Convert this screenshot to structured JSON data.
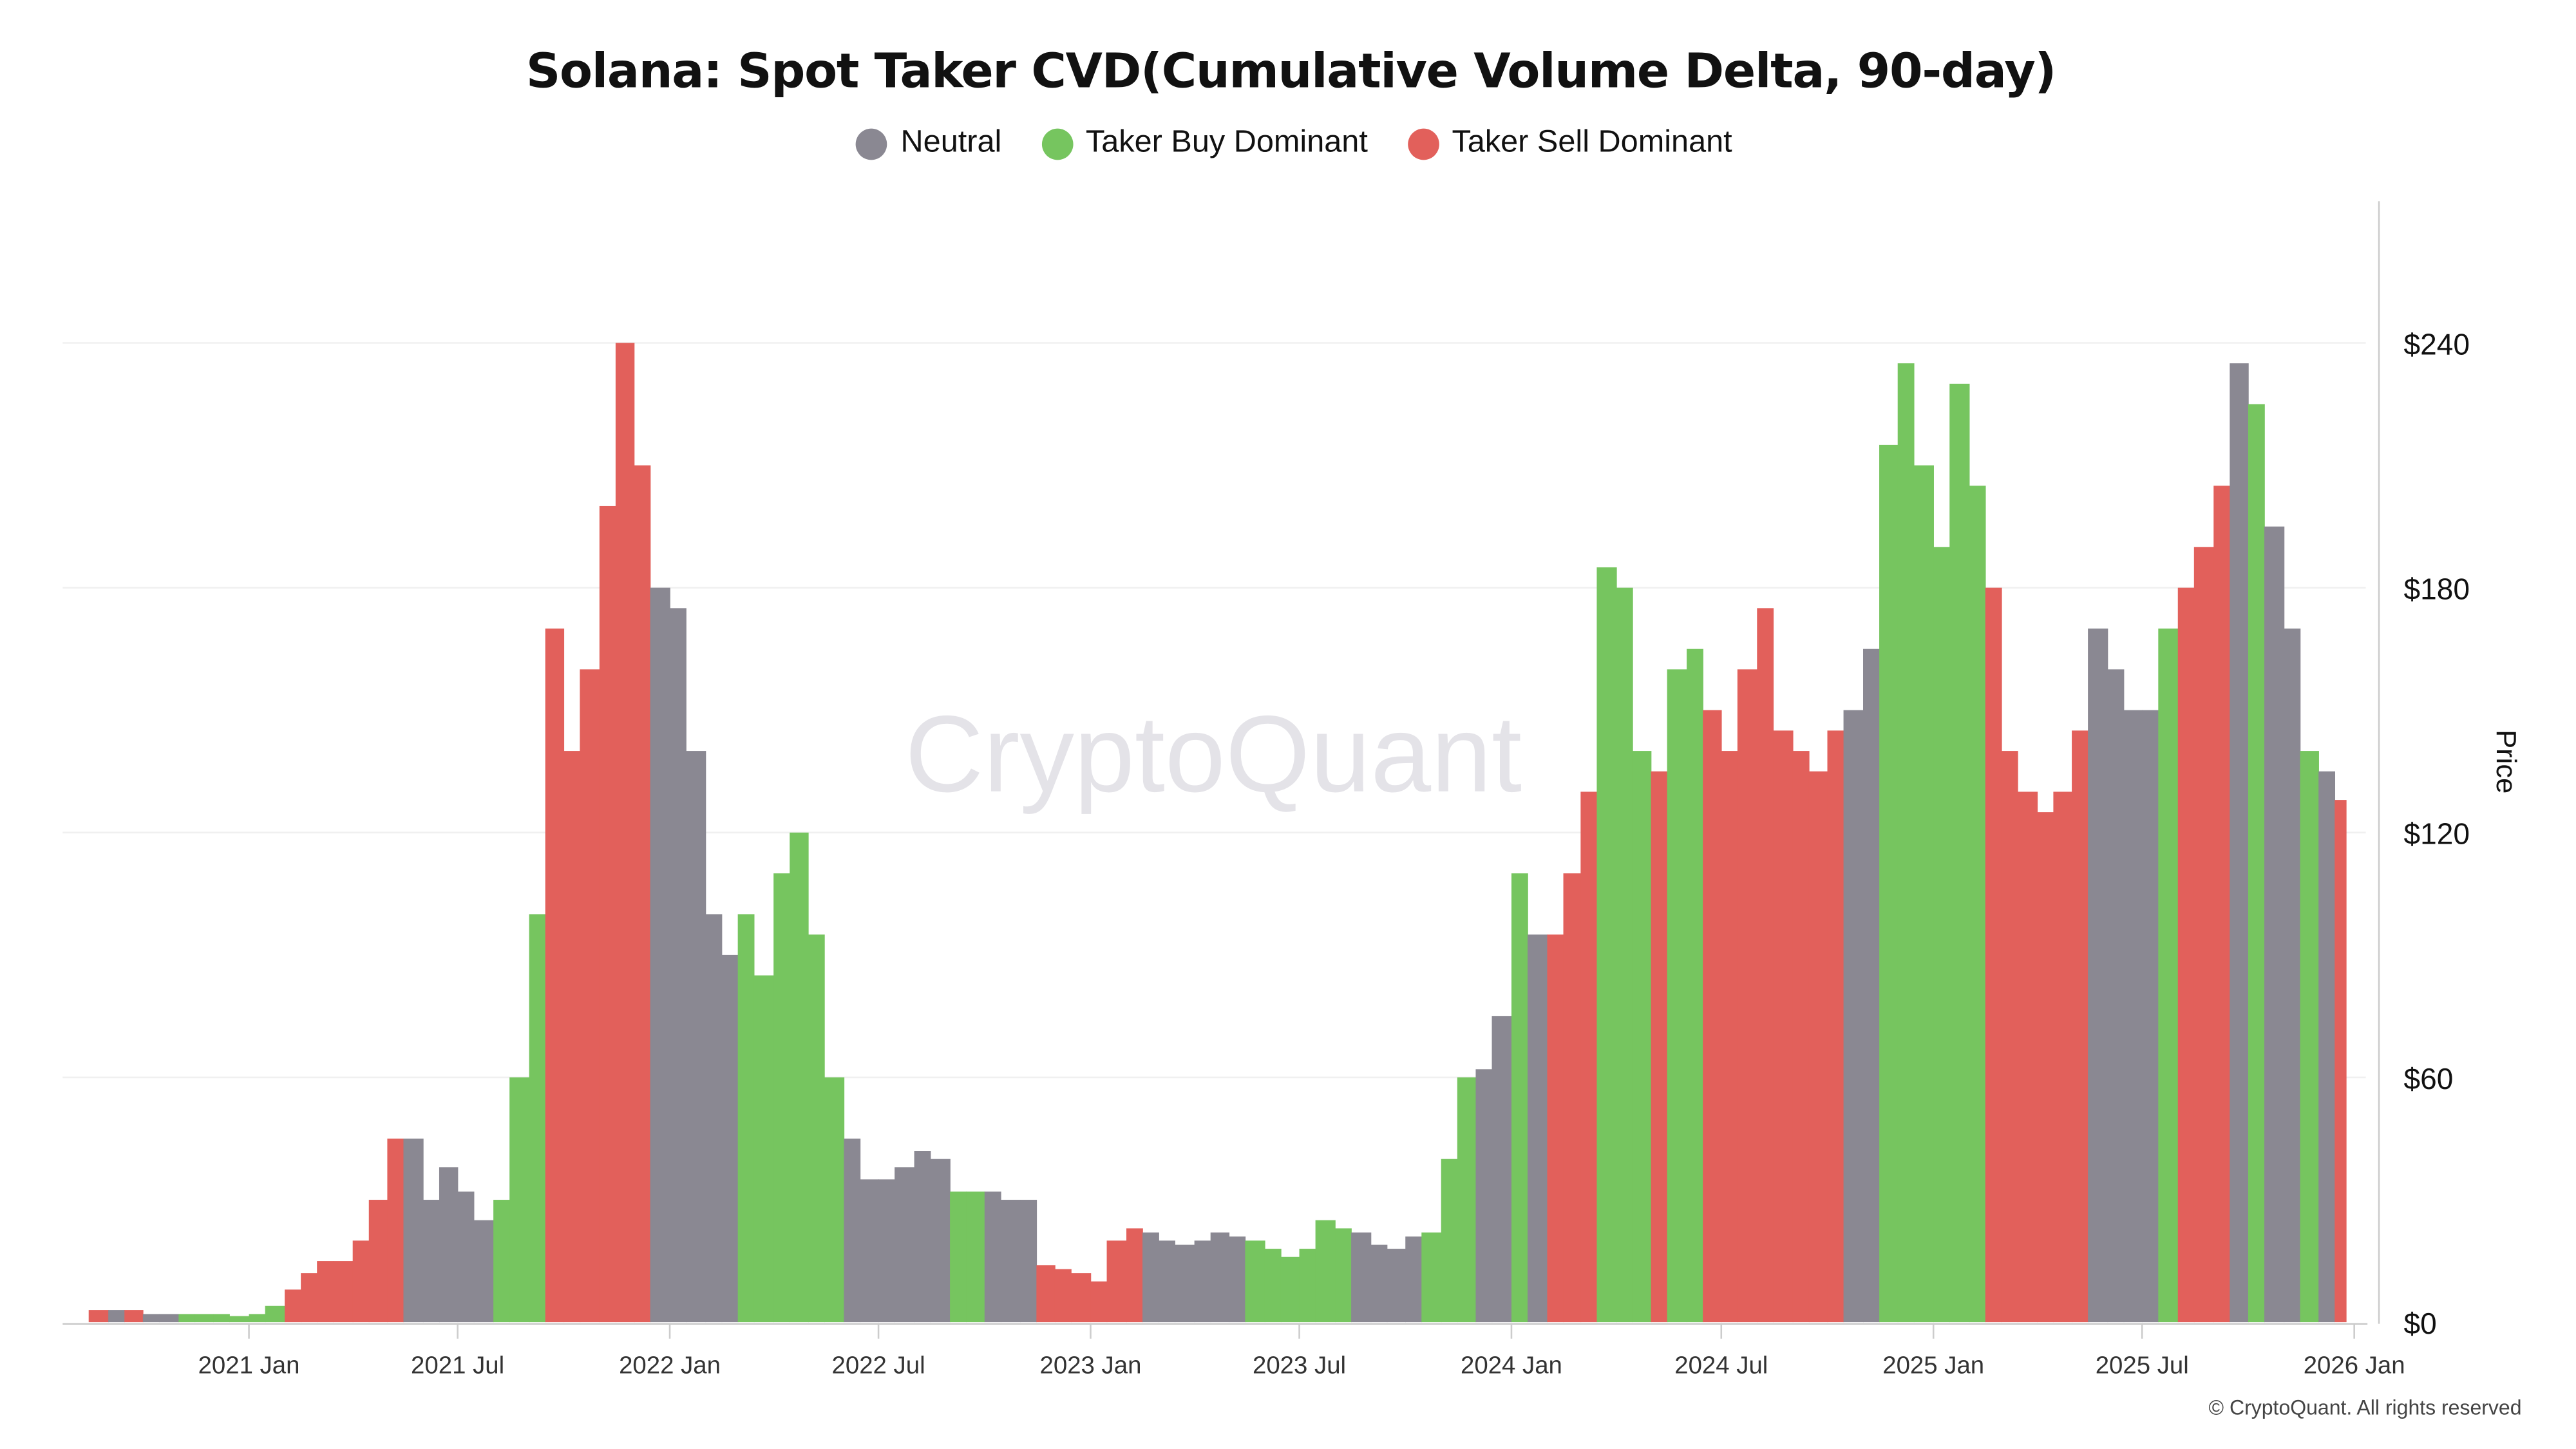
{
  "title": "Solana: Spot Taker CVD(Cumulative Volume Delta, 90-day)",
  "legend": [
    {
      "key": "N",
      "label": "Neutral",
      "color": "#8a8892"
    },
    {
      "key": "B",
      "label": "Taker Buy Dominant",
      "color": "#76c55f"
    },
    {
      "key": "S",
      "label": "Taker Sell Dominant",
      "color": "#e2605b"
    }
  ],
  "watermark": "CryptoQuant",
  "copyright": "© CryptoQuant. All rights reserved",
  "chart_data": {
    "type": "bar",
    "title": "Solana: Spot Taker CVD(Cumulative Volume Delta, 90-day)",
    "ylabel": "Price",
    "ylim": [
      0,
      270
    ],
    "yticks": [
      0,
      60,
      120,
      180,
      240
    ],
    "ytick_labels": [
      "$0",
      "$60",
      "$120",
      "$180",
      "$240"
    ],
    "xtick_labels": [
      "2021 Jan",
      "2021 Jul",
      "2022 Jan",
      "2022 Jul",
      "2023 Jan",
      "2023 Jul",
      "2024 Jan",
      "2024 Jul",
      "2025 Jan",
      "2025 Jul",
      "2026 Jan"
    ],
    "xticks": [
      "2021-01-01",
      "2021-07-01",
      "2022-01-01",
      "2022-07-01",
      "2023-01-01",
      "2023-07-01",
      "2024-01-01",
      "2024-07-01",
      "2025-01-01",
      "2025-07-01",
      "2026-01-01"
    ],
    "grid": true,
    "legend_position": "top",
    "points": [
      [
        "2020-08-15",
        3,
        "S"
      ],
      [
        "2020-09-01",
        3,
        "N"
      ],
      [
        "2020-09-15",
        3,
        "S"
      ],
      [
        "2020-10-01",
        2,
        "N"
      ],
      [
        "2020-10-15",
        2,
        "N"
      ],
      [
        "2020-11-01",
        2,
        "B"
      ],
      [
        "2020-11-15",
        2,
        "B"
      ],
      [
        "2020-12-01",
        2,
        "B"
      ],
      [
        "2020-12-15",
        1.5,
        "B"
      ],
      [
        "2021-01-01",
        2,
        "B"
      ],
      [
        "2021-01-15",
        4,
        "B"
      ],
      [
        "2021-02-01",
        8,
        "S"
      ],
      [
        "2021-02-15",
        12,
        "S"
      ],
      [
        "2021-03-01",
        15,
        "S"
      ],
      [
        "2021-03-15",
        15,
        "S"
      ],
      [
        "2021-04-01",
        20,
        "S"
      ],
      [
        "2021-04-15",
        30,
        "S"
      ],
      [
        "2021-05-01",
        45,
        "S"
      ],
      [
        "2021-05-15",
        45,
        "N"
      ],
      [
        "2021-06-01",
        30,
        "N"
      ],
      [
        "2021-06-15",
        38,
        "N"
      ],
      [
        "2021-07-01",
        32,
        "N"
      ],
      [
        "2021-07-15",
        25,
        "N"
      ],
      [
        "2021-08-01",
        30,
        "B"
      ],
      [
        "2021-08-15",
        60,
        "B"
      ],
      [
        "2021-09-01",
        100,
        "B"
      ],
      [
        "2021-09-15",
        170,
        "S"
      ],
      [
        "2021-10-01",
        140,
        "S"
      ],
      [
        "2021-10-15",
        160,
        "S"
      ],
      [
        "2021-11-01",
        200,
        "S"
      ],
      [
        "2021-11-15",
        240,
        "S"
      ],
      [
        "2021-12-01",
        210,
        "S"
      ],
      [
        "2021-12-15",
        180,
        "N"
      ],
      [
        "2022-01-01",
        175,
        "N"
      ],
      [
        "2022-01-15",
        140,
        "N"
      ],
      [
        "2022-02-01",
        100,
        "N"
      ],
      [
        "2022-02-15",
        90,
        "N"
      ],
      [
        "2022-03-01",
        100,
        "B"
      ],
      [
        "2022-03-15",
        85,
        "B"
      ],
      [
        "2022-04-01",
        110,
        "B"
      ],
      [
        "2022-04-15",
        120,
        "B"
      ],
      [
        "2022-05-01",
        95,
        "B"
      ],
      [
        "2022-05-15",
        60,
        "B"
      ],
      [
        "2022-06-01",
        45,
        "N"
      ],
      [
        "2022-06-15",
        35,
        "N"
      ],
      [
        "2022-07-01",
        35,
        "N"
      ],
      [
        "2022-07-15",
        38,
        "N"
      ],
      [
        "2022-08-01",
        42,
        "N"
      ],
      [
        "2022-08-15",
        40,
        "N"
      ],
      [
        "2022-09-01",
        32,
        "B"
      ],
      [
        "2022-09-15",
        32,
        "B"
      ],
      [
        "2022-10-01",
        32,
        "N"
      ],
      [
        "2022-10-15",
        30,
        "N"
      ],
      [
        "2022-11-01",
        30,
        "N"
      ],
      [
        "2022-11-15",
        14,
        "S"
      ],
      [
        "2022-12-01",
        13,
        "S"
      ],
      [
        "2022-12-15",
        12,
        "S"
      ],
      [
        "2023-01-01",
        10,
        "S"
      ],
      [
        "2023-01-15",
        20,
        "S"
      ],
      [
        "2023-02-01",
        23,
        "S"
      ],
      [
        "2023-02-15",
        22,
        "N"
      ],
      [
        "2023-03-01",
        20,
        "N"
      ],
      [
        "2023-03-15",
        19,
        "N"
      ],
      [
        "2023-04-01",
        20,
        "N"
      ],
      [
        "2023-04-15",
        22,
        "N"
      ],
      [
        "2023-05-01",
        21,
        "N"
      ],
      [
        "2023-05-15",
        20,
        "B"
      ],
      [
        "2023-06-01",
        18,
        "B"
      ],
      [
        "2023-06-15",
        16,
        "B"
      ],
      [
        "2023-07-01",
        18,
        "B"
      ],
      [
        "2023-07-15",
        25,
        "B"
      ],
      [
        "2023-08-01",
        23,
        "B"
      ],
      [
        "2023-08-15",
        22,
        "N"
      ],
      [
        "2023-09-01",
        19,
        "N"
      ],
      [
        "2023-09-15",
        18,
        "N"
      ],
      [
        "2023-10-01",
        21,
        "N"
      ],
      [
        "2023-10-15",
        22,
        "B"
      ],
      [
        "2023-11-01",
        40,
        "B"
      ],
      [
        "2023-11-15",
        60,
        "B"
      ],
      [
        "2023-12-01",
        62,
        "N"
      ],
      [
        "2023-12-15",
        75,
        "N"
      ],
      [
        "2024-01-01",
        110,
        "B"
      ],
      [
        "2024-01-15",
        95,
        "N"
      ],
      [
        "2024-02-01",
        95,
        "S"
      ],
      [
        "2024-02-15",
        110,
        "S"
      ],
      [
        "2024-03-01",
        130,
        "S"
      ],
      [
        "2024-03-15",
        185,
        "B"
      ],
      [
        "2024-04-01",
        180,
        "B"
      ],
      [
        "2024-04-15",
        140,
        "B"
      ],
      [
        "2024-05-01",
        135,
        "S"
      ],
      [
        "2024-05-15",
        160,
        "B"
      ],
      [
        "2024-06-01",
        165,
        "B"
      ],
      [
        "2024-06-15",
        150,
        "S"
      ],
      [
        "2024-07-01",
        140,
        "S"
      ],
      [
        "2024-07-15",
        160,
        "S"
      ],
      [
        "2024-08-01",
        175,
        "S"
      ],
      [
        "2024-08-15",
        145,
        "S"
      ],
      [
        "2024-09-01",
        140,
        "S"
      ],
      [
        "2024-09-15",
        135,
        "S"
      ],
      [
        "2024-10-01",
        145,
        "S"
      ],
      [
        "2024-10-15",
        150,
        "N"
      ],
      [
        "2024-11-01",
        165,
        "N"
      ],
      [
        "2024-11-15",
        215,
        "B"
      ],
      [
        "2024-12-01",
        235,
        "B"
      ],
      [
        "2024-12-15",
        210,
        "B"
      ],
      [
        "2025-01-01",
        190,
        "B"
      ],
      [
        "2025-01-15",
        230,
        "B"
      ],
      [
        "2025-02-01",
        205,
        "B"
      ],
      [
        "2025-02-15",
        180,
        "S"
      ],
      [
        "2025-03-01",
        140,
        "S"
      ],
      [
        "2025-03-15",
        130,
        "S"
      ],
      [
        "2025-04-01",
        125,
        "S"
      ],
      [
        "2025-04-15",
        130,
        "S"
      ],
      [
        "2025-05-01",
        145,
        "S"
      ],
      [
        "2025-05-15",
        170,
        "N"
      ],
      [
        "2025-06-01",
        160,
        "N"
      ],
      [
        "2025-06-15",
        150,
        "N"
      ],
      [
        "2025-07-01",
        150,
        "N"
      ],
      [
        "2025-07-15",
        170,
        "B"
      ],
      [
        "2025-08-01",
        180,
        "S"
      ],
      [
        "2025-08-15",
        190,
        "S"
      ],
      [
        "2025-09-01",
        205,
        "S"
      ],
      [
        "2025-09-15",
        235,
        "N"
      ],
      [
        "2025-10-01",
        225,
        "B"
      ],
      [
        "2025-10-15",
        195,
        "N"
      ],
      [
        "2025-11-01",
        170,
        "N"
      ],
      [
        "2025-11-15",
        140,
        "B"
      ],
      [
        "2025-12-01",
        135,
        "N"
      ],
      [
        "2025-12-15",
        128,
        "S"
      ]
    ]
  }
}
